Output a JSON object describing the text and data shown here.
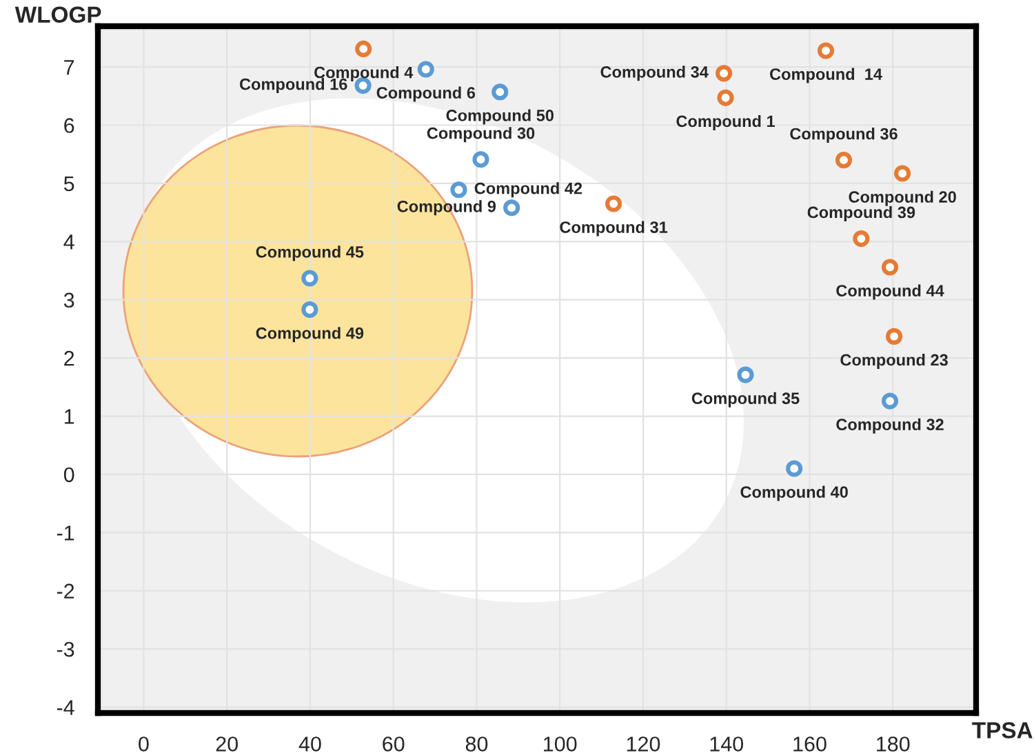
{
  "chart_data": {
    "type": "scatter",
    "xlabel": "TPSA",
    "ylabel": "WLOGP",
    "series": [
      {
        "color": "#e57b35",
        "x": [
          52.8,
          163.9,
          139.4,
          139.8,
          182.3,
          168.2,
          112.9,
          172.4,
          179.3,
          180.3
        ],
        "values": [
          7.31,
          7.28,
          6.89,
          6.47,
          5.17,
          5.4,
          4.65,
          4.05,
          3.56,
          2.37
        ]
      },
      {
        "color": "#5b9bd5",
        "x": [
          67.8,
          52.7,
          85.6,
          81.0,
          75.7,
          88.4,
          39.9,
          39.9,
          144.6,
          179.3,
          156.3
        ],
        "values": [
          6.96,
          6.68,
          6.57,
          5.41,
          4.89,
          4.58,
          3.37,
          2.83,
          1.71,
          1.26,
          0.1
        ]
      }
    ],
    "annotations": [
      {
        "text": "Compound 4",
        "x": 52.8,
        "y": 7.31
      },
      {
        "text": "Compound  14",
        "x": 163.9,
        "y": 7.28
      },
      {
        "text": "Compound 1",
        "x": 139.8,
        "y": 6.47
      },
      {
        "text": "Compound 34",
        "x": 139.4,
        "y": 6.89
      },
      {
        "text": "Compound 20",
        "x": 182.3,
        "y": 5.17
      },
      {
        "text": "Compound 36",
        "x": 168.2,
        "y": 5.4
      },
      {
        "text": "Compound 31",
        "x": 112.9,
        "y": 4.65
      },
      {
        "text": "Compound 39",
        "x": 172.4,
        "y": 4.05
      },
      {
        "text": "Compound 44",
        "x": 179.3,
        "y": 3.56
      },
      {
        "text": "Compound 23",
        "x": 180.3,
        "y": 2.37
      },
      {
        "text": "Compound 6",
        "x": 67.8,
        "y": 6.96
      },
      {
        "text": "Compound 16",
        "x": 52.7,
        "y": 6.68
      },
      {
        "text": "Compound 50",
        "x": 85.6,
        "y": 6.57
      },
      {
        "text": "Compound 30",
        "x": 81.0,
        "y": 5.41
      },
      {
        "text": "Compound 42",
        "x": 75.7,
        "y": 4.89
      },
      {
        "text": "Compound 9",
        "x": 88.4,
        "y": 4.58
      },
      {
        "text": "Compound 45",
        "x": 39.9,
        "y": 3.37
      },
      {
        "text": "Compound 49",
        "x": 39.9,
        "y": 2.83
      },
      {
        "text": "Compound 35",
        "x": 144.6,
        "y": 1.71
      },
      {
        "text": "Compound 32",
        "x": 179.3,
        "y": 1.26
      },
      {
        "text": "Compound 40",
        "x": 156.3,
        "y": 0.1
      }
    ],
    "xlim": [
      -11,
      200
    ],
    "ylim": [
      -4.1,
      7.7
    ],
    "xticks": [
      0,
      20,
      40,
      60,
      80,
      100,
      120,
      140,
      160,
      180
    ],
    "yticks": [
      -4,
      -3,
      -2,
      -1,
      0,
      1,
      2,
      3,
      4,
      5,
      6,
      7
    ],
    "grid": true,
    "marker": "circle"
  }
}
